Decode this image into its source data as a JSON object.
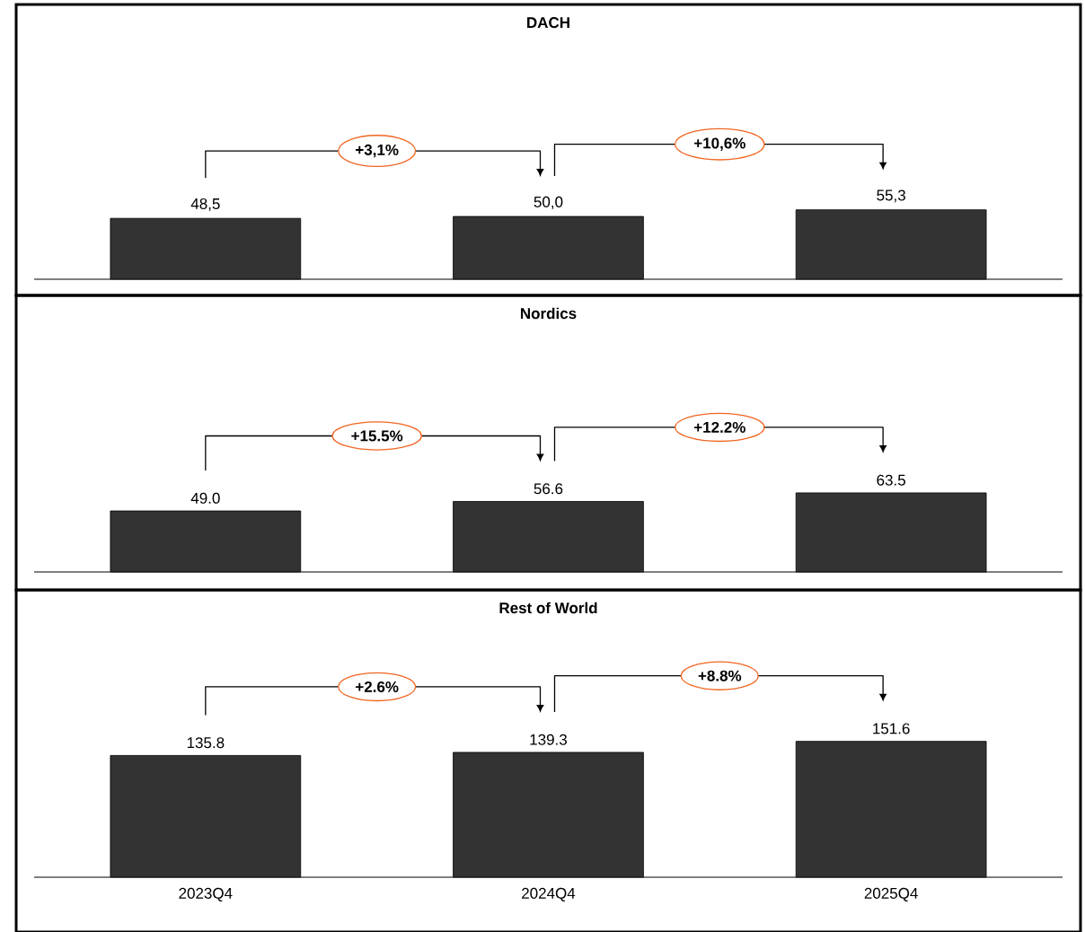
{
  "chart_data": [
    {
      "type": "bar",
      "title": "DACH",
      "categories": [
        null,
        null,
        null
      ],
      "values": [
        48.5,
        50.0,
        55.3
      ],
      "value_labels": [
        "48,5",
        "50,0",
        "55,3"
      ],
      "color": "#333333",
      "tick_labels": false,
      "annotations": [
        "+3,1%",
        "+10,6%"
      ]
    },
    {
      "type": "bar",
      "title": "Nordics",
      "categories": [
        null,
        null,
        null
      ],
      "values": [
        49.0,
        56.6,
        63.5
      ],
      "value_labels": [
        "49.0",
        "56.6",
        "63.5"
      ],
      "color": "#333333",
      "tick_labels": false,
      "annotations": [
        "+15.5%",
        "+12.2%"
      ]
    },
    {
      "type": "bar",
      "title": "Rest of World",
      "categories": [
        "2023Q4",
        "2024Q4",
        "2025Q4"
      ],
      "values": [
        135.8,
        139.3,
        151.6
      ],
      "value_labels": [
        "135.8",
        "139.3",
        "151.6"
      ],
      "color": "#333333",
      "tick_labels": "x",
      "annotations": [
        "+2.6%",
        "+8.8%"
      ]
    }
  ]
}
